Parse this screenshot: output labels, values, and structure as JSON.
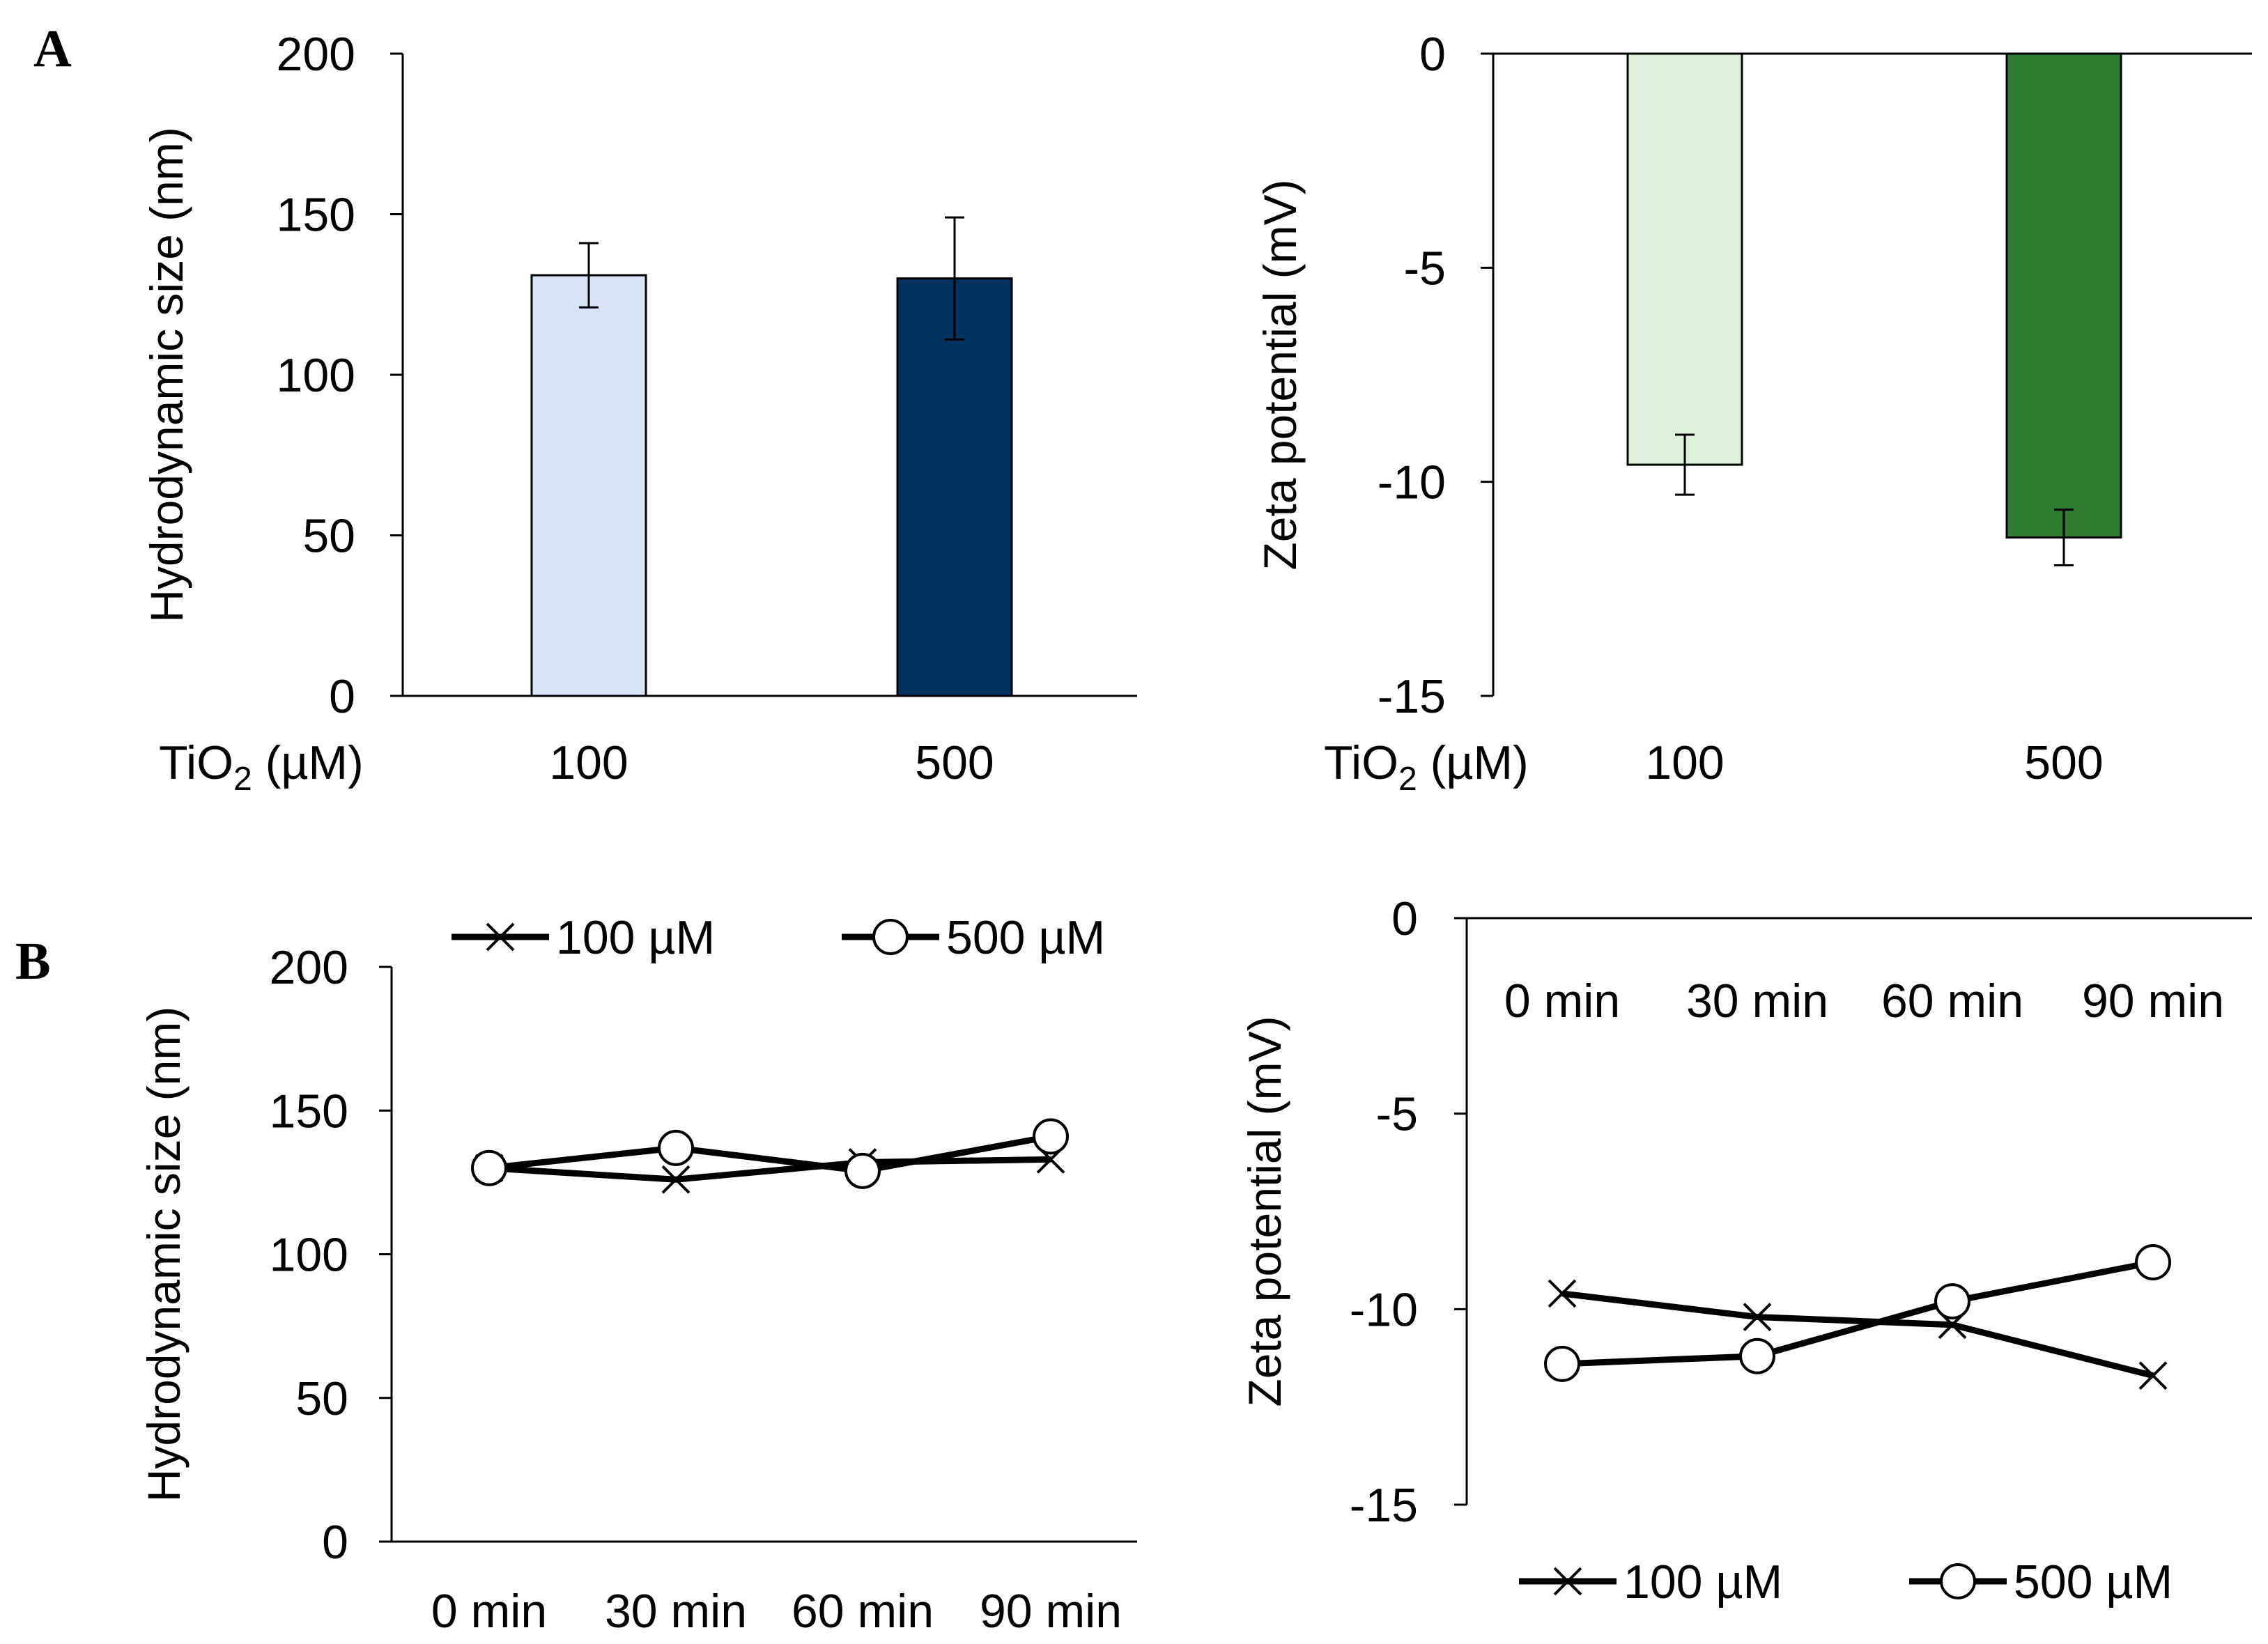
{
  "panel_labels": {
    "a": "A",
    "b": "B"
  },
  "colors": {
    "axis": "#000000",
    "bar_size_100": "#d8e4f4",
    "bar_size_500": "#03325e",
    "bar_zeta_100": "#ddf0d9",
    "bar_zeta_500": "#2e7d32",
    "line": "#000000",
    "background": "#ffffff"
  },
  "chart_data": [
    {
      "id": "a_size",
      "type": "bar",
      "panel": "A",
      "title": "",
      "ylabel": "Hydrodynamic size (nm)",
      "xlabel_prefix": "TiO",
      "xlabel_sub": "2",
      "xlabel_suffix": " (µM)",
      "categories": [
        "100",
        "500"
      ],
      "values": [
        131,
        130
      ],
      "errors": [
        10,
        19
      ],
      "ylim": [
        0,
        200
      ],
      "yticks": [
        0,
        50,
        100,
        150,
        200
      ],
      "ytick_labels": [
        "0",
        "50",
        "100",
        "150",
        "200"
      ],
      "grid": false
    },
    {
      "id": "a_zeta",
      "type": "bar",
      "panel": "A",
      "title": "",
      "ylabel": "Zeta potential (mV)",
      "xlabel_prefix": "TiO",
      "xlabel_sub": "2",
      "xlabel_suffix": " (µM)",
      "categories": [
        "100",
        "500"
      ],
      "values": [
        -9.6,
        -11.3
      ],
      "errors": [
        0.7,
        0.65
      ],
      "ylim": [
        -15,
        0
      ],
      "yticks": [
        0,
        -5,
        -10,
        -15
      ],
      "ytick_labels": [
        "0",
        "-5",
        "-10",
        "-15"
      ],
      "grid": false
    },
    {
      "id": "b_size",
      "type": "line",
      "panel": "B",
      "title": "",
      "ylabel": "Hydrodynamic size (nm)",
      "categories": [
        "0 min",
        "30 min",
        "60 min",
        "90 min"
      ],
      "series": [
        {
          "name": "100 µM",
          "marker": "x",
          "values": [
            130,
            126,
            132,
            133
          ]
        },
        {
          "name": "500 µM",
          "marker": "o",
          "values": [
            130,
            137,
            129,
            141
          ]
        }
      ],
      "ylim": [
        0,
        200
      ],
      "yticks": [
        0,
        50,
        100,
        150,
        200
      ],
      "ytick_labels": [
        "0",
        "50",
        "100",
        "150",
        "200"
      ],
      "legend": "top",
      "grid": false
    },
    {
      "id": "b_zeta",
      "type": "line",
      "panel": "B",
      "title": "",
      "ylabel": "Zeta potential (mV)",
      "categories": [
        "0 min",
        "30 min",
        "60 min",
        "90 min"
      ],
      "series": [
        {
          "name": "100 µM",
          "marker": "x",
          "values": [
            -9.6,
            -10.2,
            -10.4,
            -11.7
          ]
        },
        {
          "name": "500 µM",
          "marker": "o",
          "values": [
            -11.4,
            -11.2,
            -9.8,
            -8.8
          ]
        }
      ],
      "ylim": [
        -15,
        0
      ],
      "yticks": [
        0,
        -5,
        -10,
        -15
      ],
      "ytick_labels": [
        "0",
        "-5",
        "-10",
        "-15"
      ],
      "legend": "bottom",
      "grid": false
    }
  ]
}
